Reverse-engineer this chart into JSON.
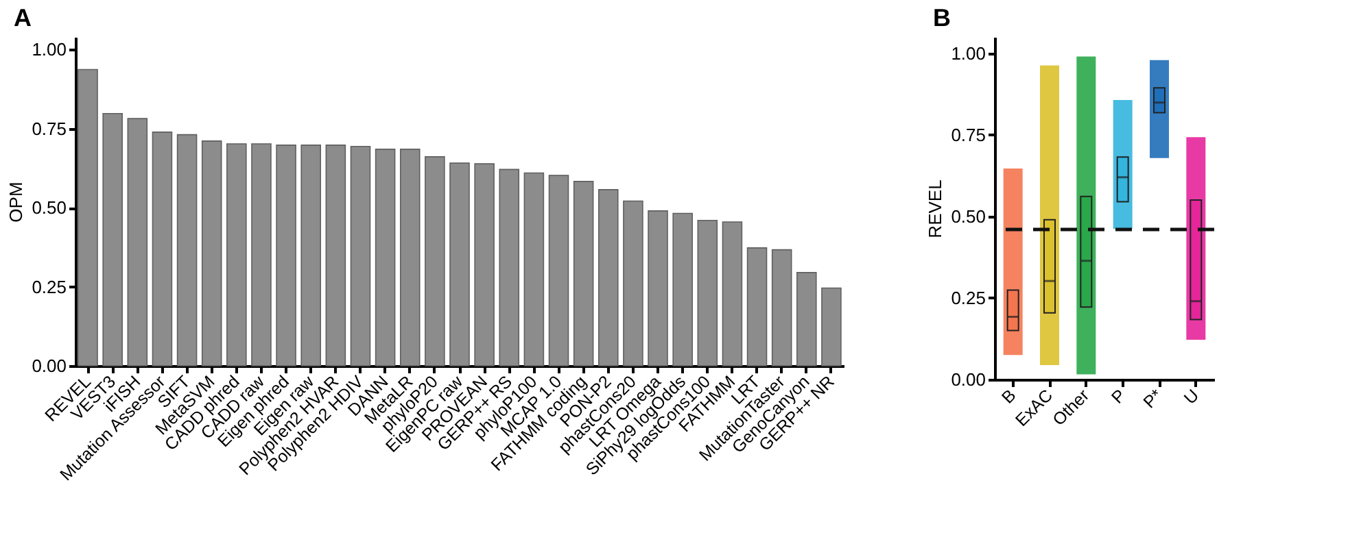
{
  "chart_data": [
    {
      "type": "bar",
      "title": "A",
      "ylabel": "OPM",
      "color": "#8c8c8c",
      "categories": [
        "REVEL",
        "VEST3",
        "iFISH",
        "Mutation Assessor",
        "SIFT",
        "MetaSVM",
        "CADD phred",
        "CADD raw",
        "Eigen phred",
        "Eigen raw",
        "Polyphen2 HVAR",
        "Polyphen2 HDIV",
        "DANN",
        "MetaLR",
        "phyloP20",
        "EigenPC raw",
        "PROVEAN",
        "GERP++ RS",
        "phyloP100",
        "MCAP 1.0",
        "FATHMM coding",
        "PON-P2",
        "phastCons20",
        "LRT Omega",
        "SiPhy29 logOdds",
        "phastCons100",
        "FATHMM",
        "LRT",
        "MutationTaster",
        "GenoCanyon",
        "GERP++ NR"
      ],
      "values": [
        0.937,
        0.798,
        0.782,
        0.739,
        0.731,
        0.711,
        0.702,
        0.702,
        0.698,
        0.698,
        0.698,
        0.694,
        0.685,
        0.685,
        0.661,
        0.641,
        0.639,
        0.621,
        0.61,
        0.602,
        0.583,
        0.557,
        0.521,
        0.49,
        0.482,
        0.46,
        0.455,
        0.373,
        0.367,
        0.295,
        0.246
      ],
      "ylim": [
        0,
        1.04
      ],
      "yticks": [
        {
          "value": 0,
          "label": "0.00"
        },
        {
          "value": 0.25,
          "label": "0.25"
        },
        {
          "value": 0.5,
          "label": "0.50"
        },
        {
          "value": 0.75,
          "label": "0.75"
        },
        {
          "value": 1,
          "label": "1.00"
        }
      ]
    },
    {
      "type": "box",
      "title": "B",
      "ylabel": "REVEL",
      "categories": [
        "B",
        "ExAC",
        "Other",
        "P",
        "P*",
        "U"
      ],
      "colors": [
        "#f4764f",
        "#dcc12e",
        "#2aa84a",
        "#33b5dd",
        "#1f6eb8",
        "#e5259a"
      ],
      "boxes": [
        {
          "low": 0.075,
          "q1": 0.15,
          "median": 0.192,
          "q3": 0.274,
          "high": 0.647
        },
        {
          "low": 0.044,
          "q1": 0.204,
          "median": 0.302,
          "q3": 0.49,
          "high": 0.963
        },
        {
          "low": 0.016,
          "q1": 0.222,
          "median": 0.364,
          "q3": 0.561,
          "high": 0.99
        },
        {
          "low": 0.462,
          "q1": 0.545,
          "median": 0.62,
          "q3": 0.682,
          "high": 0.857
        },
        {
          "low": 0.679,
          "q1": 0.818,
          "median": 0.849,
          "q3": 0.894,
          "high": 0.979
        },
        {
          "low": 0.122,
          "q1": 0.184,
          "median": 0.24,
          "q3": 0.55,
          "high": 0.743
        }
      ],
      "ylim": [
        0,
        1.05
      ],
      "yticks": [
        {
          "value": 0,
          "label": "0.00"
        },
        {
          "value": 0.25,
          "label": "0.25"
        },
        {
          "value": 0.5,
          "label": "0.50"
        },
        {
          "value": 0.75,
          "label": "0.75"
        },
        {
          "value": 1,
          "label": "1.00"
        }
      ],
      "ref_lines": [
        {
          "axis": "y",
          "value": 0.46,
          "line_style": "dashed"
        }
      ]
    }
  ]
}
